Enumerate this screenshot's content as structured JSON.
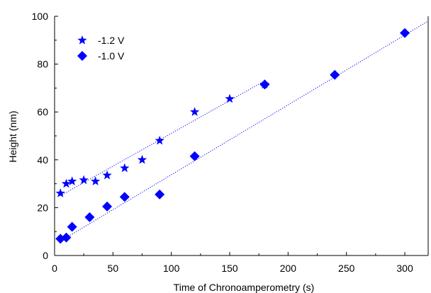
{
  "chart_data": {
    "type": "scatter",
    "xlabel": "Time of Chronoamperometry (s)",
    "ylabel": "Height (nm)",
    "xlim": [
      0,
      320
    ],
    "ylim": [
      0,
      100
    ],
    "x_ticks": [
      "0",
      "50",
      "100",
      "150",
      "200",
      "250",
      "300"
    ],
    "y_ticks": [
      "0",
      "20",
      "40",
      "60",
      "80",
      "100"
    ],
    "grid": false,
    "legend_position": "top-left",
    "series": [
      {
        "name": "-1.2 V",
        "marker": "star",
        "color": "#0000ff",
        "points": [
          {
            "x": 5,
            "y": 26
          },
          {
            "x": 10,
            "y": 30
          },
          {
            "x": 15,
            "y": 31
          },
          {
            "x": 25,
            "y": 31.5
          },
          {
            "x": 35,
            "y": 31
          },
          {
            "x": 45,
            "y": 33.5
          },
          {
            "x": 60,
            "y": 36.5
          },
          {
            "x": 75,
            "y": 40
          },
          {
            "x": 90,
            "y": 48
          },
          {
            "x": 120,
            "y": 60
          },
          {
            "x": 150,
            "y": 65.5
          },
          {
            "x": 180,
            "y": 71.5
          }
        ],
        "fit": {
          "x": [
            5,
            180
          ],
          "y": [
            25,
            73
          ]
        }
      },
      {
        "name": "-1.0 V",
        "marker": "diamond",
        "color": "#0000ff",
        "points": [
          {
            "x": 5,
            "y": 7
          },
          {
            "x": 10,
            "y": 7.5
          },
          {
            "x": 15,
            "y": 12
          },
          {
            "x": 30,
            "y": 16
          },
          {
            "x": 45,
            "y": 20.5
          },
          {
            "x": 60,
            "y": 24.5
          },
          {
            "x": 90,
            "y": 25.5
          },
          {
            "x": 120,
            "y": 41.5
          },
          {
            "x": 180,
            "y": 71.5
          },
          {
            "x": 240,
            "y": 75.5
          },
          {
            "x": 300,
            "y": 93
          }
        ],
        "fit": {
          "x": [
            5,
            320
          ],
          "y": [
            6,
            98
          ]
        }
      }
    ]
  }
}
